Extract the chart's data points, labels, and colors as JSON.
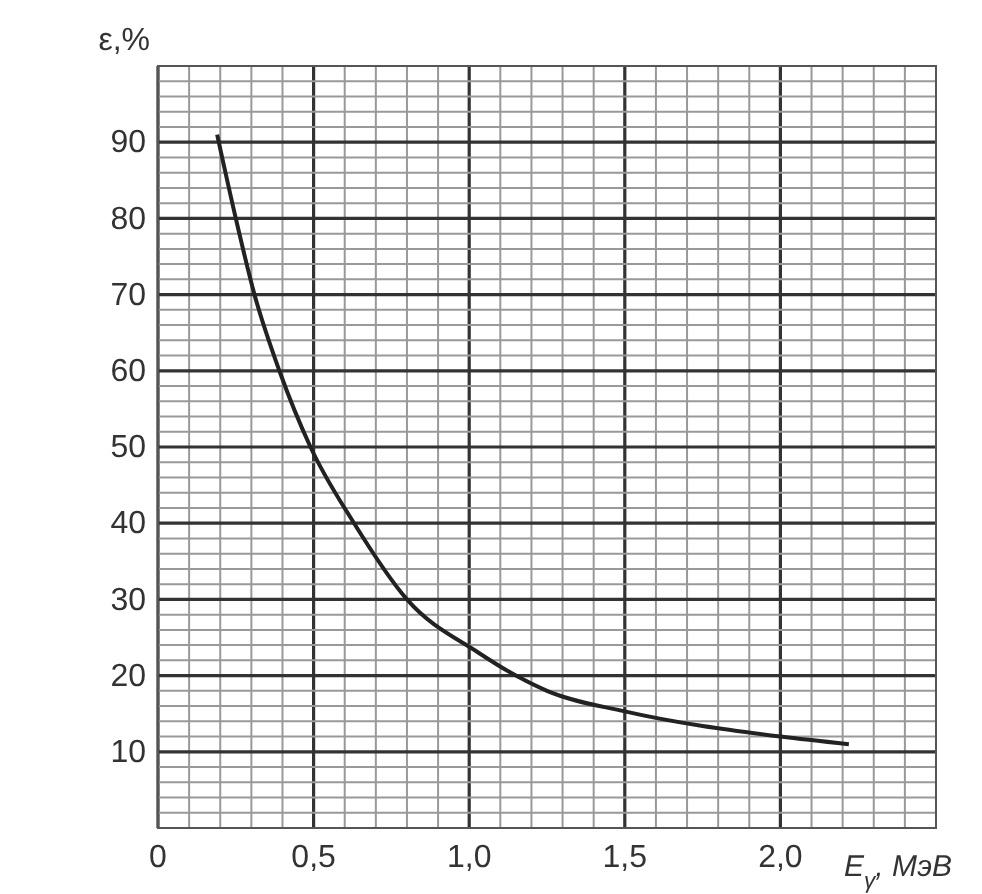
{
  "chart_data": {
    "type": "line",
    "ylabel": "ε,%",
    "xlabel": "E$_{γ}$, МэВ",
    "x": [
      0.19,
      0.25,
      0.31,
      0.39,
      0.49,
      0.63,
      0.8,
      1.03,
      1.15,
      1.25,
      1.5,
      2.0,
      2.22
    ],
    "series": [
      {
        "color": "#222222",
        "values": [
          91,
          80,
          70,
          60,
          50,
          40,
          30,
          23,
          20,
          18,
          15.3,
          12,
          11
        ]
      }
    ],
    "xlim": [
      0,
      2.5
    ],
    "ylim": [
      0,
      100
    ],
    "xticks": [
      {
        "value": 0,
        "label": "0"
      },
      {
        "value": 0.5,
        "label": "0,5"
      },
      {
        "value": 1,
        "label": "1,0"
      },
      {
        "value": 1.5,
        "label": "1,5"
      },
      {
        "value": 2,
        "label": "2,0"
      }
    ],
    "yticks": [
      10,
      20,
      30,
      40,
      50,
      60,
      70,
      80,
      90
    ],
    "grid": true,
    "marker": "none",
    "line_style": "solid"
  }
}
